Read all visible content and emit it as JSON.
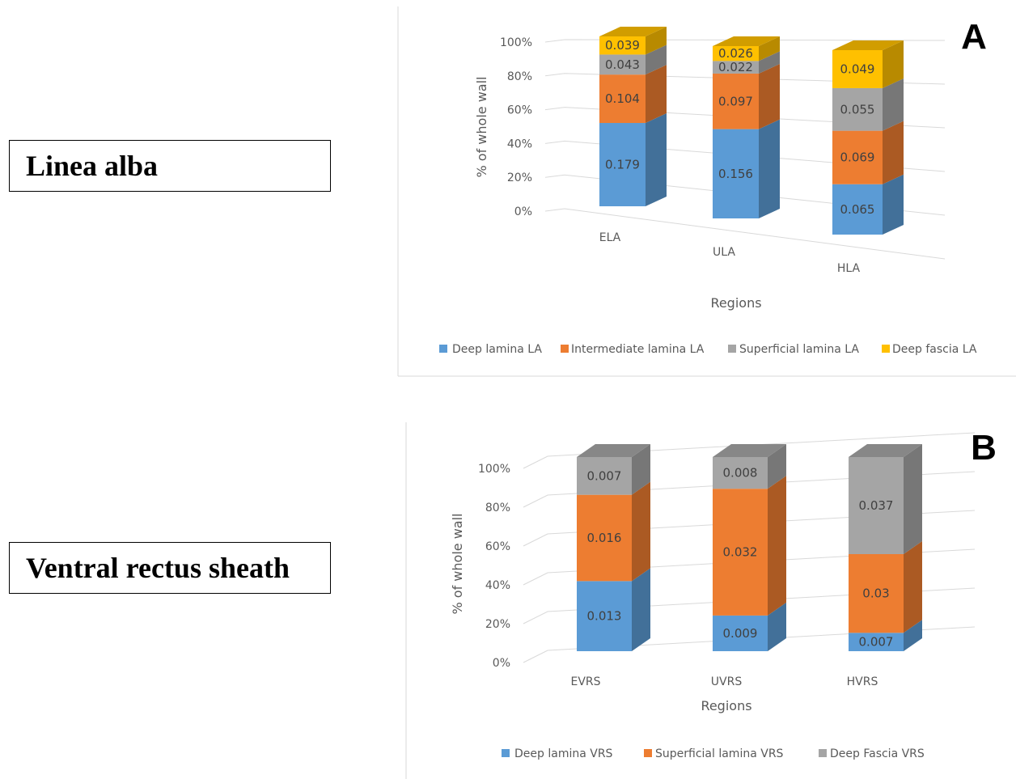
{
  "labels": {
    "a": "Linea alba",
    "b": "Ventral rectus sheath"
  },
  "chart_data": [
    {
      "type": "bar",
      "stacked": "percent",
      "projection": "3d",
      "panel": "A",
      "categories": [
        "ELA",
        "ULA",
        "HLA"
      ],
      "series": [
        {
          "name": "Deep lamina LA",
          "values": [
            0.179,
            0.156,
            0.065
          ],
          "color": "#5b9bd5"
        },
        {
          "name": "Intermediate lamina LA",
          "values": [
            0.104,
            0.097,
            0.069
          ],
          "color": "#ed7d31"
        },
        {
          "name": "Superficial lamina LA",
          "values": [
            0.043,
            0.022,
            0.055
          ],
          "color": "#a5a5a5"
        },
        {
          "name": "Deep fascia LA",
          "values": [
            0.039,
            0.026,
            0.049
          ],
          "color": "#ffc000"
        }
      ],
      "yticks": [
        "0%",
        "20%",
        "40%",
        "60%",
        "80%",
        "100%"
      ],
      "xlabel": "Regions",
      "ylabel": "% of whole wall",
      "ylim": [
        0,
        100
      ],
      "grid": true,
      "legend": "bottom"
    },
    {
      "type": "bar",
      "stacked": "percent",
      "projection": "3d",
      "panel": "B",
      "categories": [
        "EVRS",
        "UVRS",
        "HVRS"
      ],
      "series": [
        {
          "name": "Deep lamina VRS",
          "values": [
            0.013,
            0.009,
            0.007
          ],
          "color": "#5b9bd5"
        },
        {
          "name": "Superficial lamina VRS",
          "values": [
            0.016,
            0.032,
            0.03
          ],
          "color": "#ed7d31"
        },
        {
          "name": "Deep Fascia VRS",
          "values": [
            0.007,
            0.008,
            0.037
          ],
          "color": "#a5a5a5"
        }
      ],
      "yticks": [
        "0%",
        "20%",
        "40%",
        "60%",
        "80%",
        "100%"
      ],
      "xlabel": "Regions",
      "ylabel": "% of whole wall",
      "ylim": [
        0,
        100
      ],
      "grid": true,
      "legend": "bottom"
    }
  ]
}
